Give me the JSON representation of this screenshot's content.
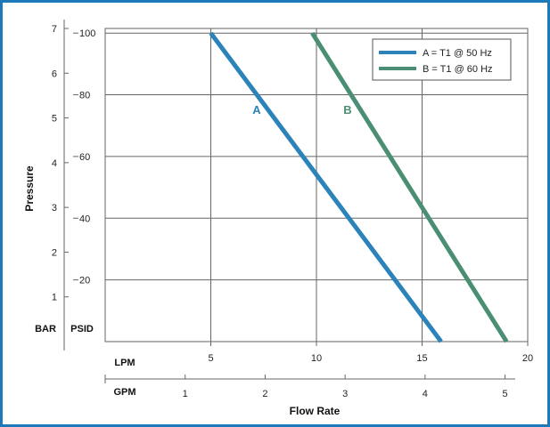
{
  "chart_data": {
    "type": "line",
    "xlabel": "Flow Rate",
    "ylabel": "Pressure",
    "x_axes": [
      {
        "unit": "LPM",
        "range": [
          0,
          20
        ],
        "ticks": [
          5,
          10,
          15,
          20
        ]
      },
      {
        "unit": "GPM",
        "range": [
          0,
          5.2834
        ],
        "ticks": [
          1,
          2,
          3,
          4,
          5
        ]
      }
    ],
    "y_axes": [
      {
        "unit": "BAR",
        "range": [
          0,
          7
        ],
        "ticks": [
          1,
          2,
          3,
          4,
          5,
          6,
          7
        ]
      },
      {
        "unit": "PSID",
        "range": [
          0,
          101.5
        ],
        "ticks": [
          20,
          40,
          60,
          80,
          100
        ]
      }
    ],
    "grid": true,
    "legend_position": "top-right",
    "series": [
      {
        "name": "A = T1 @ 50 Hz",
        "label": "A",
        "color": "#2b83b9",
        "points": [
          {
            "lpm": 5.0,
            "psid": 100
          },
          {
            "lpm": 15.9,
            "psid": 0
          }
        ]
      },
      {
        "name": "B = T1 @ 60 Hz",
        "label": "B",
        "color": "#4a8f73",
        "points": [
          {
            "lpm": 9.8,
            "psid": 100
          },
          {
            "lpm": 19.0,
            "psid": 0
          }
        ]
      }
    ]
  }
}
